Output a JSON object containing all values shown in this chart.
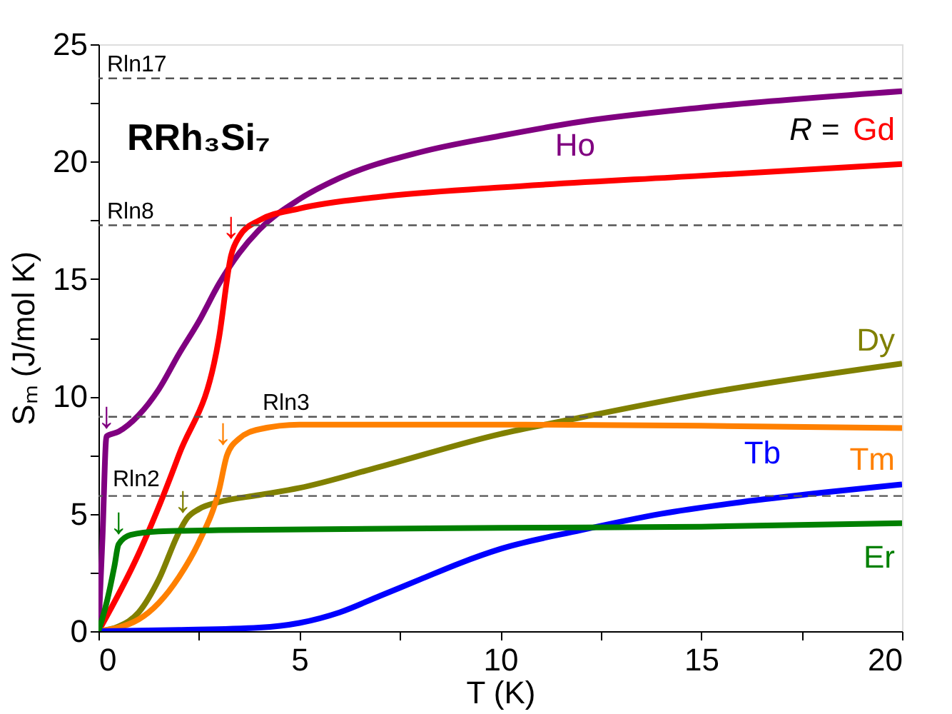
{
  "chart_data": {
    "type": "line",
    "title": "RRh₃Si₇",
    "xlabel": "T (K)",
    "ylabel": "Sₘ (J/mol K)",
    "xlim": [
      0,
      20
    ],
    "ylim": [
      0,
      25
    ],
    "xticks": [
      0,
      {
        "value": 2.5,
        "label": null
      },
      5,
      {
        "value": 7.5,
        "label": null
      },
      10,
      {
        "value": 12.5,
        "label": null
      },
      15,
      {
        "value": 17.5,
        "label": null
      },
      20
    ],
    "yticks": [
      0,
      {
        "value": 2.5,
        "label": null
      },
      5,
      {
        "value": 7.5,
        "label": null
      },
      10,
      {
        "value": 12.5,
        "label": null
      },
      15,
      {
        "value": 17.5,
        "label": null
      },
      20,
      {
        "value": 22.5,
        "label": null
      },
      25
    ],
    "grid": false,
    "marker": "none",
    "line_style": "solid",
    "series": [
      {
        "name": "Ho",
        "color": "#800080",
        "x": [
          0,
          0.1,
          0.2,
          0.5,
          1,
          1.5,
          2,
          2.5,
          3,
          3.5,
          4,
          5,
          6,
          8,
          10,
          12,
          15,
          20
        ],
        "values": [
          0,
          4,
          8.3,
          8.5,
          9.2,
          10.3,
          11.8,
          13.2,
          14.8,
          16.1,
          17.1,
          18.4,
          19.3,
          20.4,
          21.1,
          21.7,
          22.3,
          23.0
        ]
      },
      {
        "name": "Gd",
        "color": "#ff0000",
        "x": [
          0,
          1,
          2,
          3,
          3.3,
          3.5,
          4,
          5,
          7,
          10,
          15,
          20
        ],
        "values": [
          0,
          3.3,
          7.5,
          12.5,
          16,
          16.8,
          17.5,
          18,
          18.5,
          18.9,
          19.4,
          19.9
        ]
      },
      {
        "name": "Dy",
        "color": "#808000",
        "x": [
          0,
          0.5,
          1,
          1.5,
          2,
          2.2,
          2.5,
          3,
          4,
          5,
          7,
          10,
          12,
          15,
          20
        ],
        "values": [
          0,
          0.2,
          0.8,
          2.2,
          4.2,
          4.8,
          5.2,
          5.5,
          5.8,
          6.1,
          7.0,
          8.4,
          9.1,
          10.1,
          11.4
        ]
      },
      {
        "name": "Tm",
        "color": "#ff8000",
        "x": [
          0,
          1,
          1.5,
          2,
          2.5,
          3,
          3.2,
          3.5,
          4,
          5,
          10,
          15,
          20
        ],
        "values": [
          0,
          0.5,
          1.2,
          2.3,
          3.8,
          6.0,
          7.5,
          8.2,
          8.6,
          8.8,
          8.8,
          8.75,
          8.65
        ]
      },
      {
        "name": "Tb",
        "color": "#0000ff",
        "x": [
          0,
          2,
          4,
          5,
          6,
          7,
          8,
          9,
          10,
          12,
          14,
          16,
          18,
          20
        ],
        "values": [
          0,
          0.05,
          0.15,
          0.35,
          0.8,
          1.5,
          2.2,
          2.9,
          3.5,
          4.3,
          5.0,
          5.5,
          5.9,
          6.25
        ]
      },
      {
        "name": "Er",
        "color": "#008000",
        "x": [
          0,
          0.2,
          0.4,
          0.5,
          0.8,
          1.5,
          3,
          10,
          15,
          20
        ],
        "values": [
          0,
          1.2,
          2.8,
          3.7,
          4.1,
          4.25,
          4.3,
          4.4,
          4.45,
          4.6
        ]
      }
    ],
    "ref_lines": [
      {
        "axis": "y",
        "value": 23.55,
        "label": "Rln17",
        "color": "#555555",
        "line_style": "dashed"
      },
      {
        "axis": "y",
        "value": 17.29,
        "label": "Rln8",
        "color": "#555555",
        "line_style": "dashed"
      },
      {
        "axis": "y",
        "value": 9.13,
        "label": "Rln3",
        "color": "#555555",
        "line_style": "dashed"
      },
      {
        "axis": "y",
        "value": 5.76,
        "label": "Rln2",
        "color": "#555555",
        "line_style": "dashed"
      }
    ],
    "annotations": [
      "R =",
      {
        "text": "↓",
        "x": 3.3,
        "y": 16.4
      },
      {
        "text": "↓",
        "x": 0.2,
        "y": 8.3
      },
      {
        "text": "↓",
        "x": 3.1,
        "y": 7.6
      },
      {
        "text": "↓",
        "x": 2.1,
        "y": 4.7
      },
      {
        "text": "↓",
        "x": 0.5,
        "y": 3.8
      }
    ]
  }
}
